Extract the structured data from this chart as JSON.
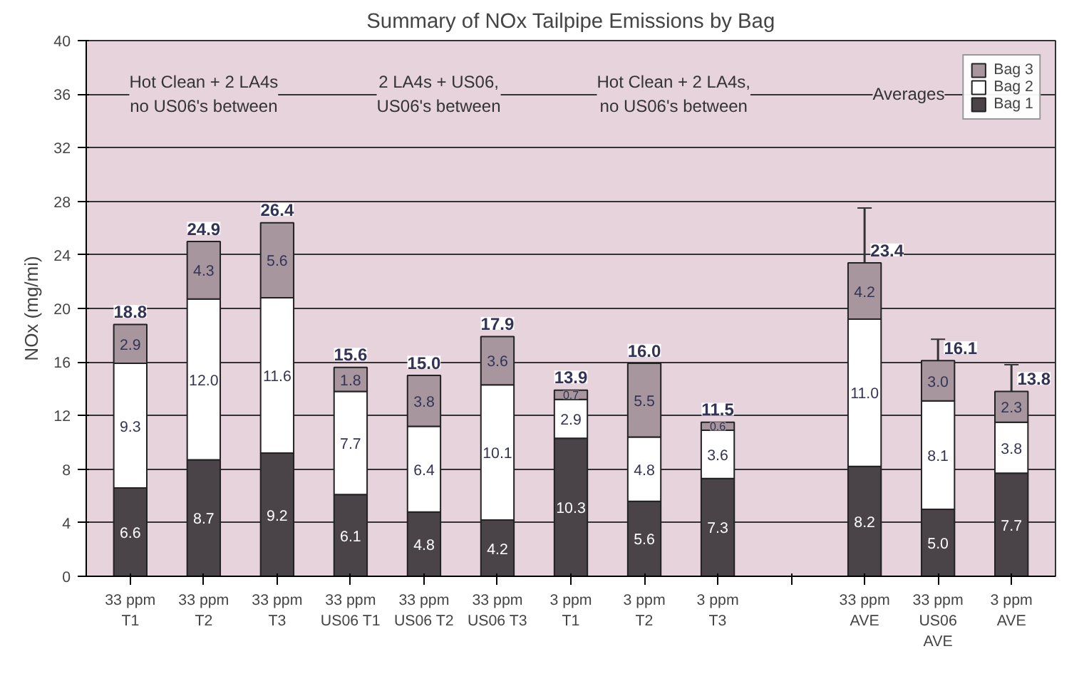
{
  "chart_data": {
    "type": "bar",
    "stacked": true,
    "title": "Summary of NOx Tailpipe Emissions by Bag",
    "ylabel": "NOx (mg/mi)",
    "categories": [
      "33 ppm\nT1",
      "33 ppm\nT2",
      "33 ppm\nT3",
      "33 ppm\nUS06 T1",
      "33 ppm\nUS06 T2",
      "33 ppm\nUS06 T3",
      "3 ppm\nT1",
      "3 ppm\nT2",
      "3 ppm\nT3",
      null,
      "33 ppm\nAVE",
      "33 ppm\nUS06\nAVE",
      "3 ppm\nAVE"
    ],
    "series": [
      {
        "name": "Bag 1",
        "color": "#4a4448",
        "values": [
          6.6,
          8.7,
          9.2,
          6.1,
          4.8,
          4.2,
          10.3,
          5.6,
          7.3,
          null,
          8.2,
          5.0,
          7.7
        ],
        "value_labels": [
          "6.6",
          "8.7",
          "9.2",
          "6.1",
          "4.8",
          "4.2",
          "10.3",
          "5.6",
          "7.3",
          null,
          "8.2",
          "5.0",
          "7.7"
        ]
      },
      {
        "name": "Bag 2",
        "color": "#ffffff",
        "values": [
          9.3,
          12.0,
          11.6,
          7.7,
          6.4,
          10.1,
          2.9,
          4.8,
          3.6,
          null,
          11.0,
          8.1,
          3.8
        ],
        "value_labels": [
          "9.3",
          "12.0",
          "11.6",
          "7.7",
          "6.4",
          "10.1",
          "2.9",
          "4.8",
          "3.6",
          null,
          "11.0",
          "8.1",
          "3.8"
        ]
      },
      {
        "name": "Bag 3",
        "color": "#a8969e",
        "values": [
          2.9,
          4.3,
          5.6,
          1.8,
          3.8,
          3.6,
          0.7,
          5.5,
          0.6,
          null,
          4.2,
          3.0,
          2.3
        ],
        "value_labels": [
          "2.9",
          "4.3",
          "5.6",
          "1.8",
          "3.8",
          "3.6",
          "0.7",
          "5.5",
          "0.6",
          null,
          "4.2",
          "3.0",
          "2.3"
        ],
        "errors": [
          null,
          null,
          null,
          null,
          null,
          null,
          null,
          null,
          null,
          null,
          4.1,
          1.6,
          2.0
        ]
      }
    ],
    "totals": [
      "18.8",
      "24.9",
      "26.4",
      "15.6",
      "15.0",
      "17.9",
      "13.9",
      "16.0",
      "11.5",
      null,
      "23.4",
      "16.1",
      "13.8"
    ],
    "annotations": [
      "Hot Clean + 2 LA4s\nno US06's between",
      "2 LA4s + US06,\nUS06's between",
      "Hot Clean + 2 LA4s,\nno US06's between",
      "Averages"
    ],
    "ylim": [
      0,
      40
    ],
    "yticks": [
      0,
      4,
      8,
      12,
      16,
      20,
      24,
      28,
      32,
      36,
      40
    ],
    "grid": "y",
    "legend": "top right"
  }
}
